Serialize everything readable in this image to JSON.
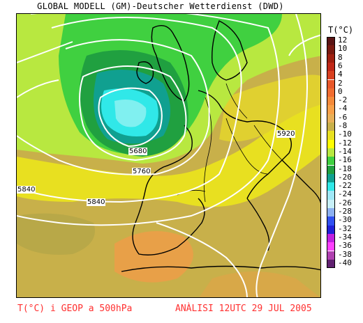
{
  "header": {
    "title": "GLOBAL MODELL (GM)-Deutscher Wetterdienst (DWD)"
  },
  "legend": {
    "title": "T(°C)",
    "levels": [
      {
        "label": "12",
        "color": "#5a1414"
      },
      {
        "label": "10",
        "color": "#7a1a10"
      },
      {
        "label": "8",
        "color": "#a02010"
      },
      {
        "label": "6",
        "color": "#c02818"
      },
      {
        "label": "4",
        "color": "#d84020"
      },
      {
        "label": "2",
        "color": "#e8582a"
      },
      {
        "label": "0",
        "color": "#f06c30"
      },
      {
        "label": "-2",
        "color": "#f48a3a"
      },
      {
        "label": "-4",
        "color": "#f8a048"
      },
      {
        "label": "-6",
        "color": "#e8b058"
      },
      {
        "label": "-8",
        "color": "#c8b04a"
      },
      {
        "label": "-10",
        "color": "#e8e020"
      },
      {
        "label": "-12",
        "color": "#ffff00"
      },
      {
        "label": "-14",
        "color": "#b8e840"
      },
      {
        "label": "-16",
        "color": "#40d040"
      },
      {
        "label": "-18",
        "color": "#20a040"
      },
      {
        "label": "-20",
        "color": "#10a090"
      },
      {
        "label": "-22",
        "color": "#30e8e8"
      },
      {
        "label": "-24",
        "color": "#a0e8f8"
      },
      {
        "label": "-26",
        "color": "#c8f0f8"
      },
      {
        "label": "-28",
        "color": "#8cb0f0"
      },
      {
        "label": "-30",
        "color": "#3050f0"
      },
      {
        "label": "-32",
        "color": "#2020d8"
      },
      {
        "label": "-34",
        "color": "#c020e0"
      },
      {
        "label": "-36",
        "color": "#ff40ff"
      },
      {
        "label": "-38",
        "color": "#b040b0"
      },
      {
        "label": "-40",
        "color": "#602070"
      }
    ]
  },
  "isolines": {
    "labels": [
      "5680",
      "5760",
      "5840",
      "5920",
      "5840"
    ]
  },
  "footer": {
    "left": "T(°C) i GEOP a 500hPa",
    "right": "ANÀLISI 12UTC 29 JUL 2005"
  }
}
